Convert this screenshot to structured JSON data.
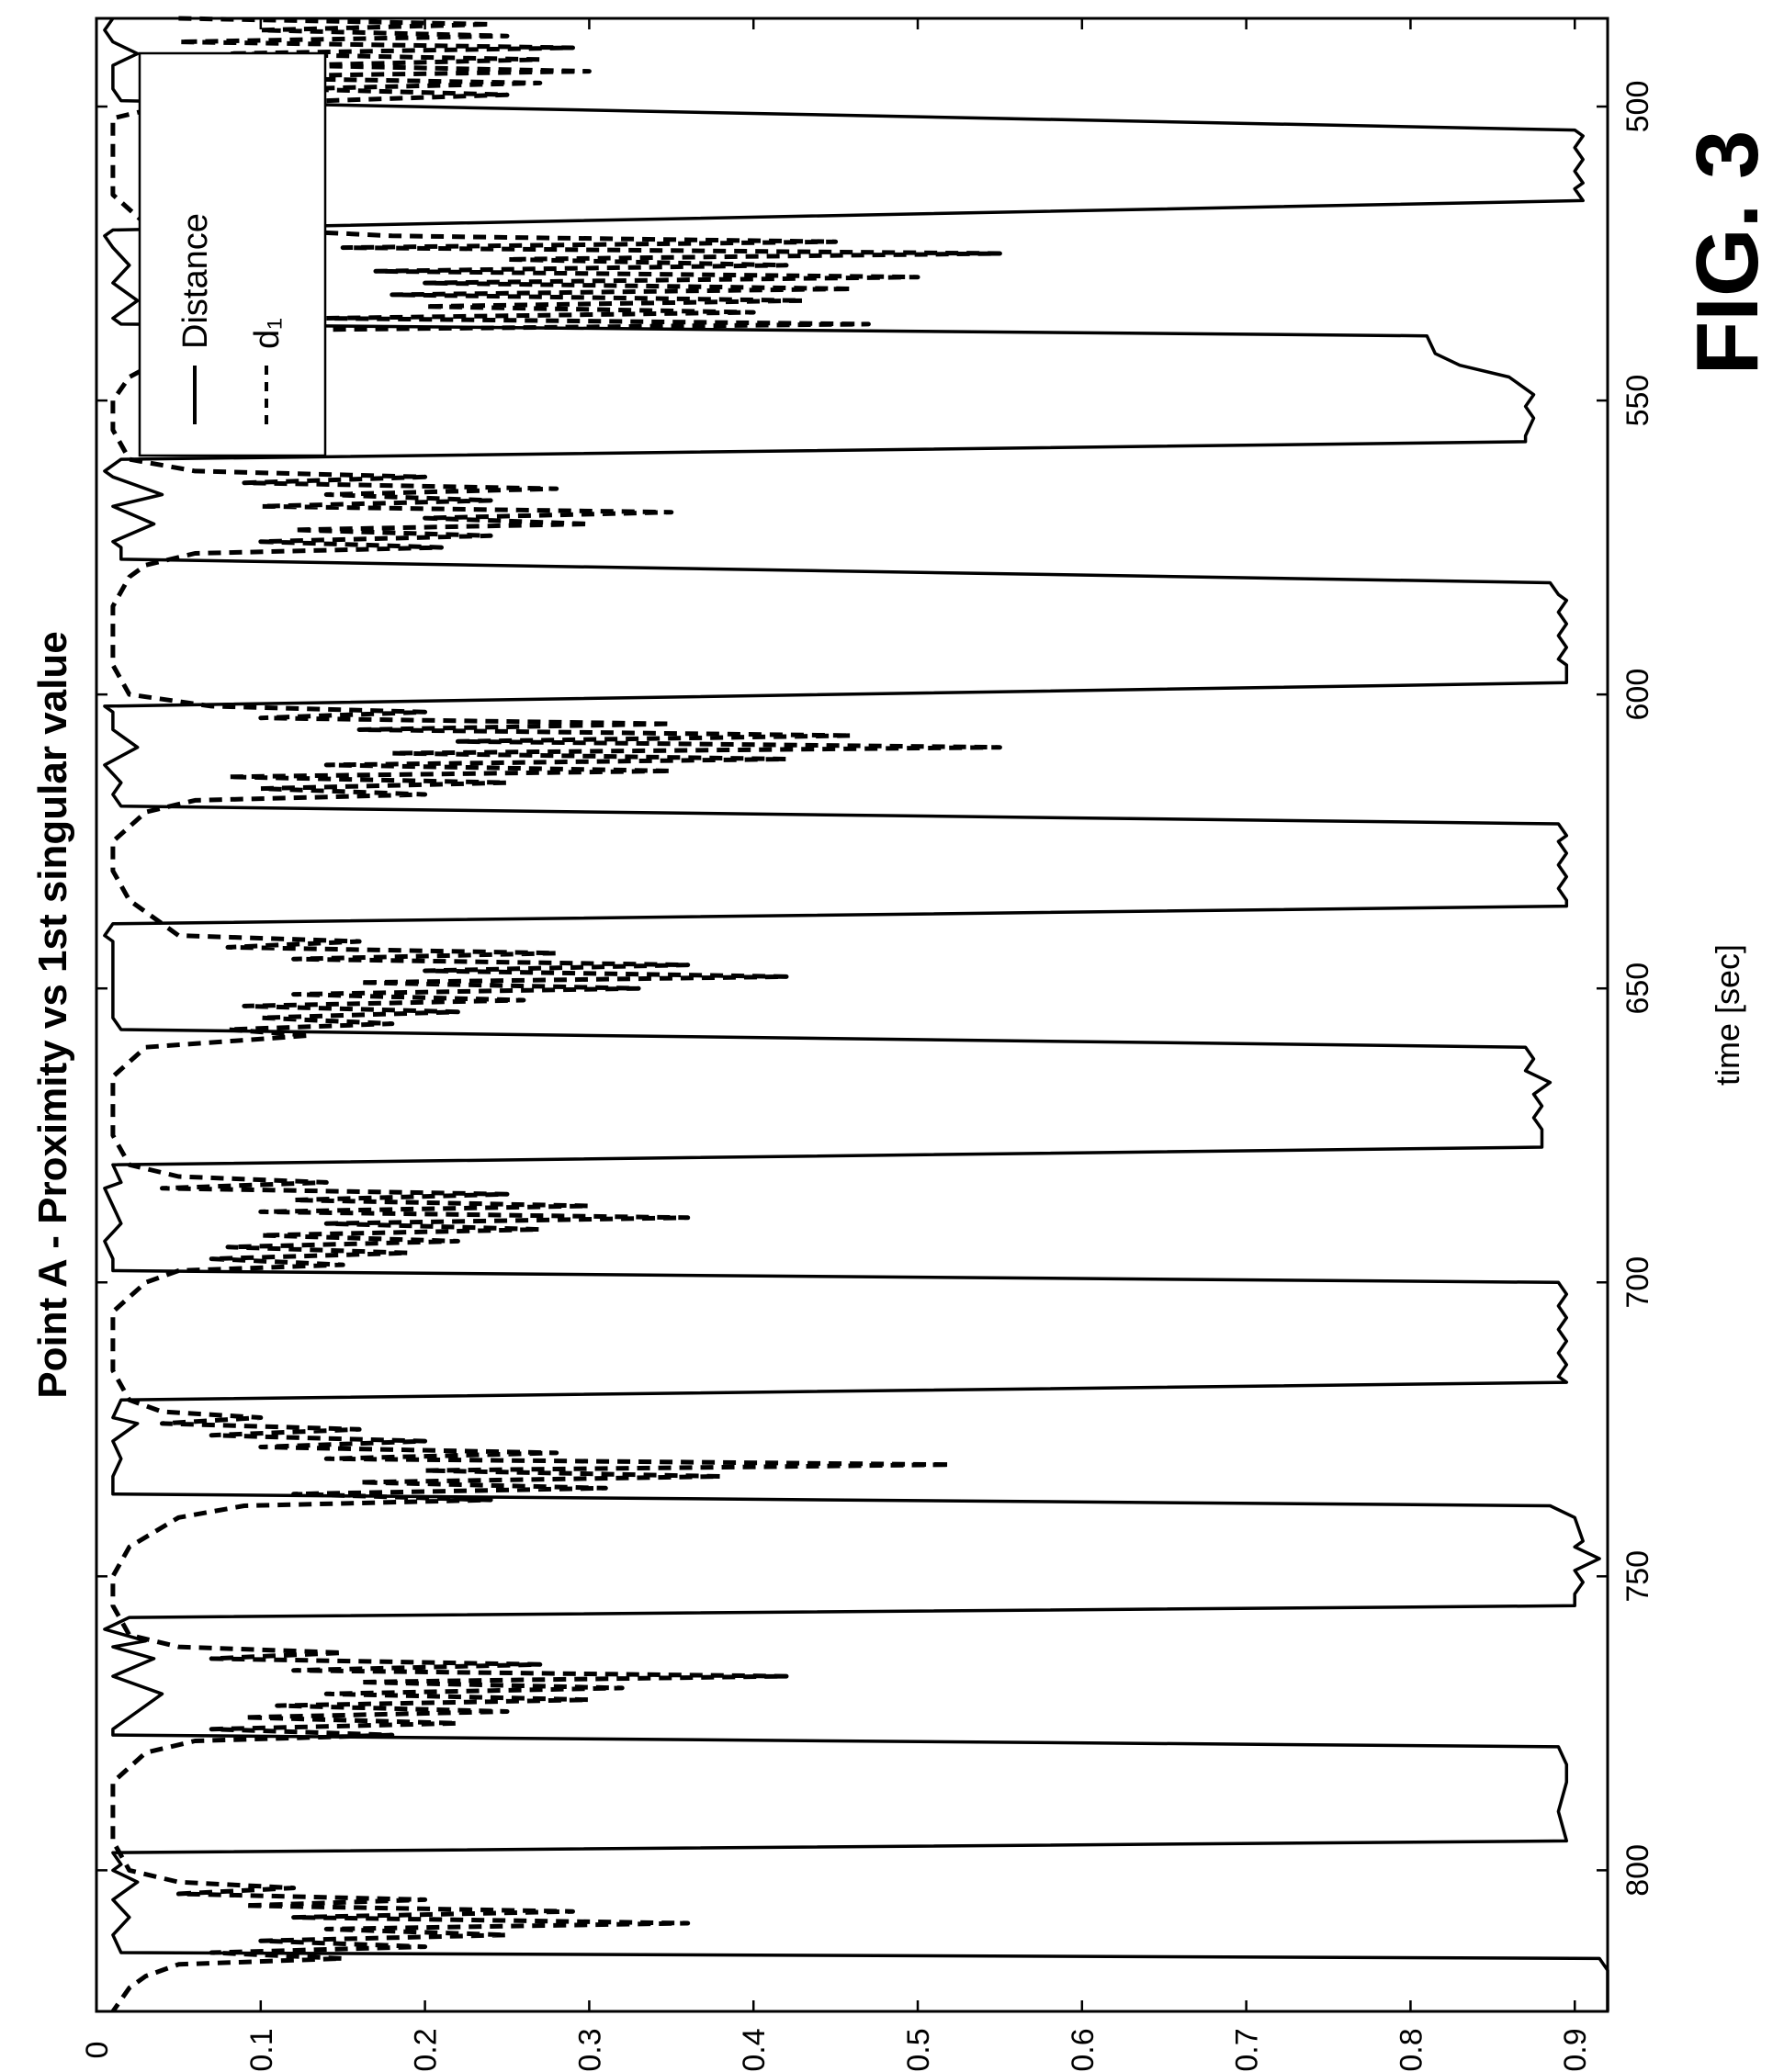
{
  "figure_label": "FIG. 3",
  "chart_data": {
    "type": "line",
    "title": "Point A - Proximity vs 1st singular value",
    "xlabel": "time [sec]",
    "ylabel": "",
    "xlim": [
      485,
      824
    ],
    "ylim": [
      0,
      0.92
    ],
    "xticks": [
      500,
      550,
      600,
      650,
      700,
      750,
      800
    ],
    "xtick_labels": [
      "500",
      "550",
      "600",
      "650",
      "700",
      "750",
      "800"
    ],
    "yticks": [
      0,
      0.1,
      0.2,
      0.3,
      0.4,
      0.5,
      0.6,
      0.7,
      0.8,
      0.9
    ],
    "ytick_labels": [
      "0",
      "0.1",
      "0.2",
      "0.3",
      "0.4",
      "0.5",
      "0.6",
      "0.7",
      "0.8",
      "0.9"
    ],
    "grid": false,
    "legend_position": "top-right",
    "series": [
      {
        "name": "Distance",
        "style": "solid",
        "x": [
          485,
          487,
          489,
          491,
          493,
          497,
          499,
          504,
          505,
          507,
          509,
          511,
          513,
          514,
          516,
          521,
          522,
          524,
          527,
          530,
          533,
          536,
          537,
          539,
          542,
          544,
          546,
          548,
          549,
          551,
          553,
          556,
          557,
          560,
          562,
          563,
          566,
          568,
          571,
          574,
          575,
          577,
          581,
          583,
          584,
          586,
          588,
          590,
          592,
          594,
          595,
          598,
          602,
          603,
          606,
          609,
          612,
          615,
          617,
          619,
          622,
          624,
          625,
          627,
          629,
          631,
          633,
          635,
          636,
          639,
          641,
          642,
          645,
          650,
          655,
          657,
          660,
          662,
          664,
          666,
          668,
          670,
          672,
          674,
          676,
          677,
          680,
          683,
          684,
          687,
          690,
          693,
          696,
          698,
          700,
          702,
          704,
          706,
          708,
          710,
          712,
          714,
          716,
          717,
          720,
          723,
          724,
          727,
          730,
          733,
          736,
          738,
          740,
          744,
          745,
          747,
          749,
          751,
          753,
          755,
          757,
          759,
          761,
          762,
          764,
          767,
          770,
          773,
          776,
          777,
          779,
          782,
          783,
          785,
          790,
          795,
          797,
          799,
          800,
          802,
          805,
          808,
          811,
          814,
          815,
          817,
          819,
          820,
          822,
          824
        ],
        "y": [
          0.01,
          0.005,
          0.01,
          0.025,
          0.01,
          0.01,
          0.015,
          0.9,
          0.905,
          0.9,
          0.905,
          0.9,
          0.905,
          0.9,
          0.905,
          0.01,
          0.005,
          0.01,
          0.02,
          0.01,
          0.025,
          0.01,
          0.015,
          0.81,
          0.815,
          0.83,
          0.86,
          0.87,
          0.875,
          0.87,
          0.875,
          0.87,
          0.87,
          0.015,
          0.005,
          0.01,
          0.04,
          0.01,
          0.035,
          0.01,
          0.015,
          0.015,
          0.885,
          0.89,
          0.895,
          0.89,
          0.895,
          0.89,
          0.895,
          0.89,
          0.895,
          0.895,
          0.005,
          0.01,
          0.01,
          0.025,
          0.005,
          0.015,
          0.01,
          0.015,
          0.89,
          0.895,
          0.89,
          0.895,
          0.89,
          0.895,
          0.89,
          0.895,
          0.895,
          0.01,
          0.005,
          0.01,
          0.01,
          0.01,
          0.01,
          0.015,
          0.87,
          0.875,
          0.87,
          0.885,
          0.875,
          0.88,
          0.875,
          0.88,
          0.88,
          0.88,
          0.01,
          0.015,
          0.005,
          0.01,
          0.015,
          0.005,
          0.01,
          0.01,
          0.89,
          0.895,
          0.89,
          0.895,
          0.89,
          0.895,
          0.89,
          0.895,
          0.89,
          0.895,
          0.015,
          0.01,
          0.025,
          0.01,
          0.015,
          0.01,
          0.01,
          0.885,
          0.9,
          0.905,
          0.9,
          0.915,
          0.9,
          0.905,
          0.9,
          0.9,
          0.02,
          0.005,
          0.03,
          0.01,
          0.035,
          0.01,
          0.04,
          0.025,
          0.01,
          0.01,
          0.89,
          0.895,
          0.895,
          0.895,
          0.89,
          0.895,
          0.01,
          0.015,
          0.01,
          0.025,
          0.01,
          0.02,
          0.01,
          0.015,
          0.915,
          0.92,
          0.92,
          0.92,
          0.92,
          0.92
        ]
      },
      {
        "name": "d₁",
        "style": "dashed",
        "x": [
          485,
          486,
          487,
          488,
          489,
          490,
          491,
          492,
          493,
          494,
          495,
          496,
          497,
          498,
          499,
          500,
          502,
          505,
          510,
          515,
          520,
          522,
          523,
          524,
          525,
          526,
          527,
          528,
          529,
          530,
          531,
          532,
          533,
          534,
          535,
          536,
          537,
          538,
          540,
          543,
          546,
          550,
          555,
          560,
          562,
          563,
          564,
          565,
          566,
          567,
          568,
          569,
          570,
          571,
          572,
          573,
          574,
          575,
          576,
          578,
          580,
          585,
          590,
          595,
          600,
          602,
          603,
          604,
          605,
          606,
          607,
          608,
          609,
          610,
          611,
          612,
          613,
          614,
          615,
          616,
          617,
          618,
          620,
          625,
          630,
          635,
          641,
          642,
          643,
          644,
          645,
          646,
          647,
          648,
          649,
          650,
          651,
          652,
          653,
          654,
          655,
          656,
          657,
          658,
          660,
          665,
          670,
          675,
          680,
          682,
          683,
          684,
          685,
          686,
          687,
          688,
          689,
          690,
          691,
          692,
          693,
          694,
          695,
          696,
          697,
          698,
          700,
          705,
          710,
          715,
          720,
          722,
          723,
          724,
          725,
          726,
          727,
          728,
          729,
          730,
          731,
          732,
          733,
          734,
          735,
          736,
          737,
          738,
          740,
          745,
          750,
          755,
          760,
          762,
          763,
          764,
          765,
          766,
          767,
          768,
          769,
          770,
          771,
          772,
          773,
          774,
          775,
          776,
          777,
          778,
          780,
          785,
          790,
          795,
          800,
          802,
          803,
          804,
          805,
          806,
          807,
          808,
          809,
          810,
          811,
          812,
          813,
          814,
          815,
          816,
          818,
          820,
          824
        ],
        "y": [
          0.05,
          0.24,
          0.1,
          0.25,
          0.05,
          0.29,
          0.08,
          0.27,
          0.12,
          0.3,
          0.06,
          0.27,
          0.12,
          0.25,
          0.14,
          0.04,
          0.01,
          0.01,
          0.01,
          0.01,
          0.03,
          0.18,
          0.45,
          0.15,
          0.55,
          0.25,
          0.42,
          0.17,
          0.5,
          0.2,
          0.46,
          0.18,
          0.43,
          0.2,
          0.4,
          0.14,
          0.47,
          0.11,
          0.08,
          0.04,
          0.02,
          0.01,
          0.01,
          0.02,
          0.06,
          0.2,
          0.09,
          0.28,
          0.14,
          0.24,
          0.1,
          0.35,
          0.2,
          0.3,
          0.12,
          0.24,
          0.1,
          0.21,
          0.06,
          0.03,
          0.02,
          0.01,
          0.01,
          0.01,
          0.02,
          0.07,
          0.2,
          0.1,
          0.35,
          0.16,
          0.46,
          0.22,
          0.55,
          0.18,
          0.42,
          0.14,
          0.35,
          0.08,
          0.25,
          0.1,
          0.2,
          0.06,
          0.03,
          0.01,
          0.01,
          0.02,
          0.05,
          0.16,
          0.08,
          0.28,
          0.12,
          0.36,
          0.2,
          0.42,
          0.16,
          0.33,
          0.12,
          0.26,
          0.09,
          0.22,
          0.1,
          0.18,
          0.08,
          0.13,
          0.03,
          0.01,
          0.01,
          0.01,
          0.02,
          0.05,
          0.14,
          0.04,
          0.25,
          0.12,
          0.3,
          0.1,
          0.36,
          0.14,
          0.27,
          0.1,
          0.22,
          0.08,
          0.19,
          0.07,
          0.15,
          0.05,
          0.03,
          0.01,
          0.01,
          0.01,
          0.02,
          0.04,
          0.1,
          0.04,
          0.16,
          0.07,
          0.2,
          0.1,
          0.28,
          0.14,
          0.52,
          0.2,
          0.38,
          0.16,
          0.31,
          0.12,
          0.24,
          0.09,
          0.05,
          0.02,
          0.01,
          0.01,
          0.02,
          0.05,
          0.15,
          0.07,
          0.27,
          0.12,
          0.42,
          0.16,
          0.32,
          0.14,
          0.3,
          0.11,
          0.25,
          0.09,
          0.22,
          0.07,
          0.18,
          0.06,
          0.03,
          0.01,
          0.01,
          0.01,
          0.02,
          0.05,
          0.12,
          0.05,
          0.2,
          0.09,
          0.29,
          0.12,
          0.36,
          0.14,
          0.25,
          0.1,
          0.2,
          0.07,
          0.15,
          0.05,
          0.03,
          0.02,
          0.01
        ]
      }
    ]
  }
}
